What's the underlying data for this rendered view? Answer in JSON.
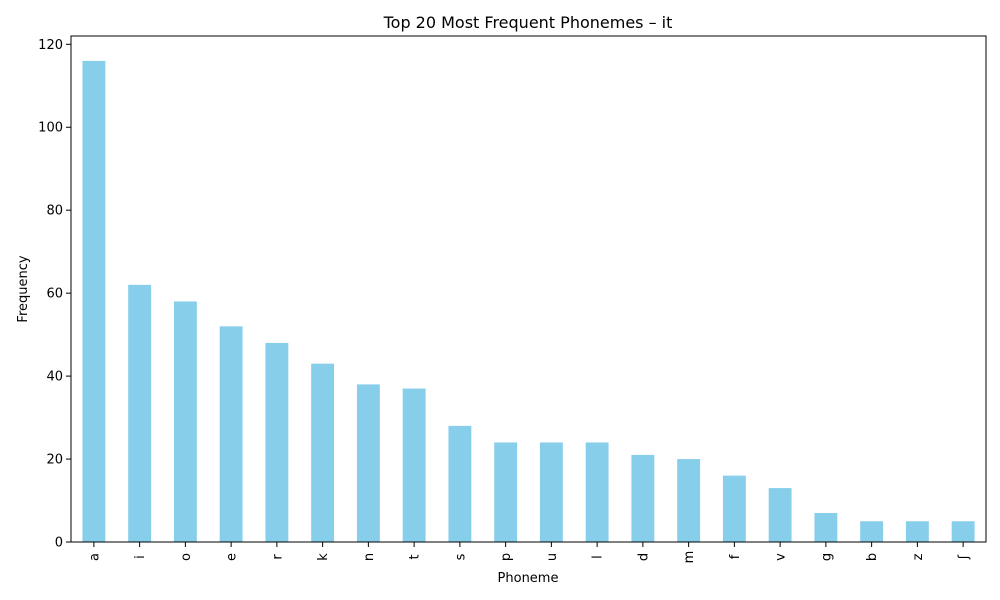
{
  "chart_data": {
    "type": "bar",
    "title": "Top 20 Most Frequent Phonemes – it",
    "xlabel": "Phoneme",
    "ylabel": "Frequency",
    "categories": [
      "a",
      "i",
      "o",
      "e",
      "r",
      "k",
      "n",
      "t",
      "s",
      "p",
      "u",
      "l",
      "d",
      "m",
      "f",
      "v",
      "g",
      "b",
      "z",
      "ʃ"
    ],
    "values": [
      116,
      62,
      58,
      52,
      48,
      43,
      38,
      37,
      28,
      24,
      24,
      24,
      21,
      20,
      16,
      13,
      7,
      5,
      5,
      5
    ],
    "ylim": [
      0,
      122
    ],
    "yticks": [
      0,
      20,
      40,
      60,
      80,
      100,
      120
    ],
    "bar_color": "#87ceeb",
    "grid": false,
    "legend": "none"
  }
}
